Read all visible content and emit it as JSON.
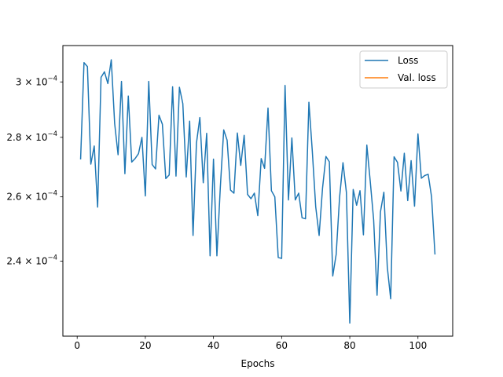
{
  "chart_data": {
    "type": "line",
    "xlabel": "Epochs",
    "ylabel": "",
    "xlim": [
      -4.2,
      110.2
    ],
    "ylim": [
      0.0002186,
      0.0003139
    ],
    "y_scale": "log",
    "xticks": [
      0,
      20,
      40,
      60,
      80,
      100
    ],
    "xtick_labels": [
      "0",
      "20",
      "40",
      "60",
      "80",
      "100"
    ],
    "yticks": [
      0.00024,
      0.00026,
      0.00028,
      0.0003
    ],
    "ytick_labels": [
      {
        "mant": "2.4",
        "exp": "−4"
      },
      {
        "mant": "2.6",
        "exp": "−4"
      },
      {
        "mant": "2.8",
        "exp": "−4"
      },
      {
        "mant": "3",
        "exp": "−4"
      }
    ],
    "times_symbol": "×",
    "base": "10",
    "legend_position": "upper right",
    "grid": false,
    "series": [
      {
        "name": "Loss",
        "color": "#1f77b4",
        "x": [
          1,
          2,
          3,
          4,
          5,
          6,
          7,
          8,
          9,
          10,
          11,
          12,
          13,
          14,
          15,
          16,
          17,
          18,
          19,
          20,
          21,
          22,
          23,
          24,
          25,
          26,
          27,
          28,
          29,
          30,
          31,
          32,
          33,
          34,
          35,
          36,
          37,
          38,
          39,
          40,
          41,
          42,
          43,
          44,
          45,
          46,
          47,
          48,
          49,
          50,
          51,
          52,
          53,
          54,
          55,
          56,
          57,
          58,
          59,
          60,
          61,
          62,
          63,
          64,
          65,
          66,
          67,
          68,
          69,
          70,
          71,
          72,
          73,
          74,
          75,
          76,
          77,
          78,
          79,
          80,
          81,
          82,
          83,
          84,
          85,
          86,
          87,
          88,
          89,
          90,
          91,
          92,
          93,
          94,
          95,
          96,
          97,
          98,
          99,
          100,
          101,
          102,
          103,
          104,
          105
        ],
        "y": [
          0.0002724,
          0.0003073,
          0.0003058,
          0.0002708,
          0.000277,
          0.0002567,
          0.0003017,
          0.0003038,
          0.0002994,
          0.0003084,
          0.0002848,
          0.000274,
          0.0003002,
          0.0002676,
          0.0002948,
          0.0002715,
          0.0002727,
          0.0002744,
          0.00028,
          0.0002603,
          0.0003002,
          0.0002707,
          0.0002692,
          0.0002878,
          0.0002846,
          0.000266,
          0.0002672,
          0.0002982,
          0.0002668,
          0.000298,
          0.000292,
          0.0002665,
          0.0002857,
          0.0002478,
          0.000278,
          0.000287,
          0.0002646,
          0.0002814,
          0.0002416,
          0.0002725,
          0.0002416,
          0.000263,
          0.0002826,
          0.000279,
          0.0002622,
          0.0002612,
          0.0002815,
          0.0002704,
          0.0002807,
          0.0002608,
          0.0002594,
          0.0002612,
          0.000254,
          0.0002727,
          0.0002694,
          0.0002904,
          0.000262,
          0.00026,
          0.0002411,
          0.0002408,
          0.0002987,
          0.000259,
          0.0002798,
          0.000259,
          0.0002612,
          0.0002533,
          0.000253,
          0.0002925,
          0.0002752,
          0.0002568,
          0.0002478,
          0.0002628,
          0.0002734,
          0.0002716,
          0.0002356,
          0.000242,
          0.0002598,
          0.0002713,
          0.0002615,
          0.0002222,
          0.0002624,
          0.0002573,
          0.000262,
          0.000248,
          0.0002773,
          0.0002651,
          0.0002527,
          0.00023,
          0.0002552,
          0.0002615,
          0.0002383,
          0.000229,
          0.0002733,
          0.0002714,
          0.0002619,
          0.0002745,
          0.0002588,
          0.000272,
          0.000257,
          0.0002812,
          0.0002661,
          0.000267,
          0.0002674,
          0.00026,
          0.000242
        ]
      },
      {
        "name": "Val. loss",
        "color": "#ff7f0e",
        "x": [],
        "y": []
      }
    ]
  }
}
